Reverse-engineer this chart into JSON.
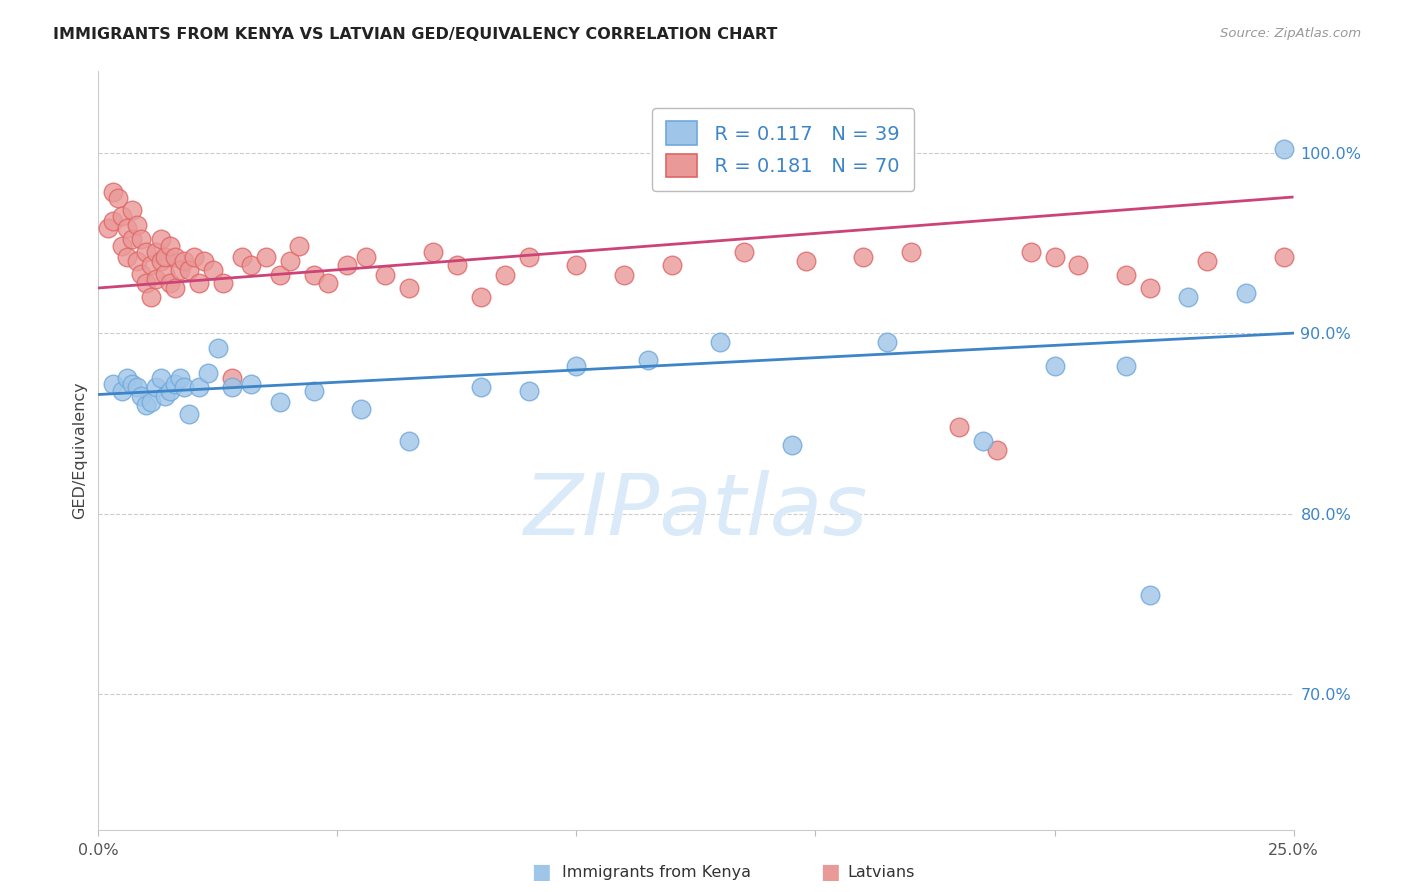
{
  "title": "IMMIGRANTS FROM KENYA VS LATVIAN GED/EQUIVALENCY CORRELATION CHART",
  "source": "Source: ZipAtlas.com",
  "ylabel": "GED/Equivalency",
  "xlim": [
    0.0,
    0.25
  ],
  "ylim": [
    0.625,
    1.045
  ],
  "yticks": [
    0.7,
    0.8,
    0.9,
    1.0
  ],
  "ytick_labels": [
    "70.0%",
    "80.0%",
    "90.0%",
    "100.0%"
  ],
  "legend_r1": "R = 0.117",
  "legend_n1": "N = 39",
  "legend_r2": "R = 0.181",
  "legend_n2": "N = 70",
  "blue_color": "#9fc5e8",
  "blue_edge": "#6fa8dc",
  "pink_color": "#ea9999",
  "pink_edge": "#e06666",
  "blue_line": "#3d85c8",
  "pink_line": "#cc4477",
  "blue_label_color": "#3d85c8",
  "watermark_color": "#daeaf8",
  "kenya_x": [
    0.003,
    0.005,
    0.006,
    0.007,
    0.008,
    0.009,
    0.01,
    0.011,
    0.012,
    0.013,
    0.014,
    0.015,
    0.016,
    0.017,
    0.018,
    0.019,
    0.021,
    0.023,
    0.025,
    0.028,
    0.032,
    0.038,
    0.045,
    0.055,
    0.065,
    0.08,
    0.09,
    0.1,
    0.115,
    0.13,
    0.145,
    0.165,
    0.185,
    0.2,
    0.215,
    0.22,
    0.228,
    0.24,
    0.248
  ],
  "kenya_y": [
    0.872,
    0.868,
    0.875,
    0.872,
    0.87,
    0.865,
    0.86,
    0.862,
    0.87,
    0.875,
    0.865,
    0.868,
    0.872,
    0.875,
    0.87,
    0.855,
    0.87,
    0.878,
    0.892,
    0.87,
    0.872,
    0.862,
    0.868,
    0.858,
    0.84,
    0.87,
    0.868,
    0.882,
    0.885,
    0.895,
    0.838,
    0.895,
    0.84,
    0.882,
    0.882,
    0.755,
    0.92,
    0.922,
    1.002
  ],
  "latvian_x": [
    0.002,
    0.003,
    0.003,
    0.004,
    0.005,
    0.005,
    0.006,
    0.006,
    0.007,
    0.007,
    0.008,
    0.008,
    0.009,
    0.009,
    0.01,
    0.01,
    0.011,
    0.011,
    0.012,
    0.012,
    0.013,
    0.013,
    0.014,
    0.014,
    0.015,
    0.015,
    0.016,
    0.016,
    0.017,
    0.018,
    0.019,
    0.02,
    0.021,
    0.022,
    0.024,
    0.026,
    0.028,
    0.03,
    0.032,
    0.035,
    0.038,
    0.04,
    0.042,
    0.045,
    0.048,
    0.052,
    0.056,
    0.06,
    0.065,
    0.07,
    0.075,
    0.08,
    0.085,
    0.09,
    0.1,
    0.11,
    0.12,
    0.135,
    0.148,
    0.16,
    0.17,
    0.18,
    0.188,
    0.195,
    0.2,
    0.205,
    0.215,
    0.22,
    0.232,
    0.248
  ],
  "latvian_y": [
    0.958,
    0.978,
    0.962,
    0.975,
    0.965,
    0.948,
    0.958,
    0.942,
    0.968,
    0.952,
    0.96,
    0.94,
    0.952,
    0.933,
    0.945,
    0.928,
    0.938,
    0.92,
    0.945,
    0.93,
    0.94,
    0.952,
    0.933,
    0.942,
    0.948,
    0.928,
    0.942,
    0.925,
    0.935,
    0.94,
    0.935,
    0.942,
    0.928,
    0.94,
    0.935,
    0.928,
    0.875,
    0.942,
    0.938,
    0.942,
    0.932,
    0.94,
    0.948,
    0.932,
    0.928,
    0.938,
    0.942,
    0.932,
    0.925,
    0.945,
    0.938,
    0.92,
    0.932,
    0.942,
    0.938,
    0.932,
    0.938,
    0.945,
    0.94,
    0.942,
    0.945,
    0.848,
    0.835,
    0.945,
    0.942,
    0.938,
    0.932,
    0.925,
    0.94,
    0.942
  ]
}
